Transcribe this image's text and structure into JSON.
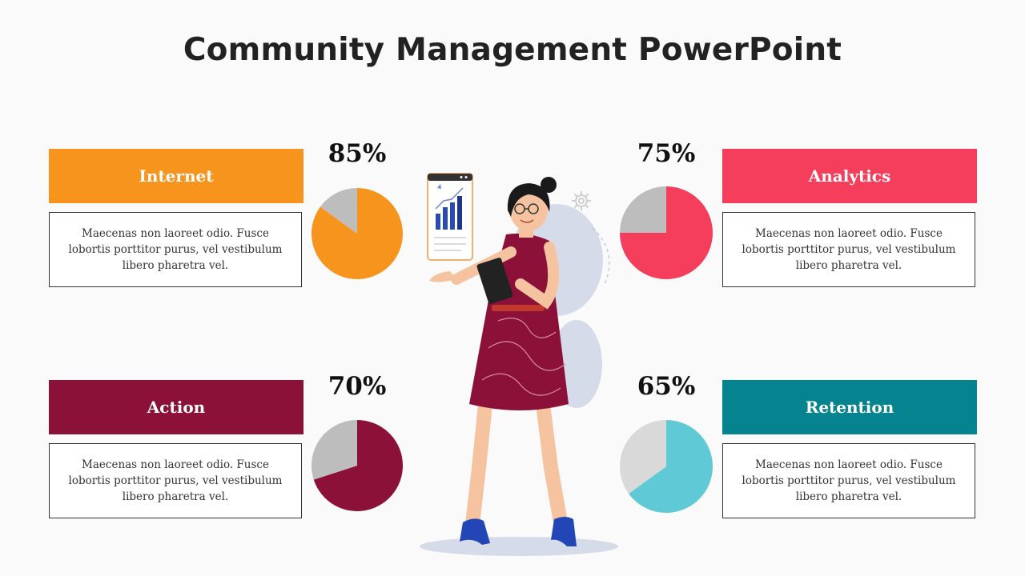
{
  "title": "Community Management PowerPoint",
  "body_text": "Maecenas non laoreet odio. Fusce lobortis porttitor purus, vel vestibulum libero pharetra vel.",
  "chart_data": [
    {
      "type": "pie",
      "label": "Internet",
      "title": "85%",
      "values": [
        85,
        15
      ],
      "colors": [
        "#f7941d",
        "#bdbdbd"
      ]
    },
    {
      "type": "pie",
      "label": "Analytics",
      "title": "75%",
      "values": [
        75,
        25
      ],
      "colors": [
        "#f53d5c",
        "#bdbdbd"
      ]
    },
    {
      "type": "pie",
      "label": "Action",
      "title": "70%",
      "values": [
        70,
        30
      ],
      "colors": [
        "#8b1139",
        "#bdbdbd"
      ]
    },
    {
      "type": "pie",
      "label": "Retention",
      "title": "65%",
      "values": [
        65,
        35
      ],
      "colors": [
        "#5fcad6",
        "#d9d9d9"
      ]
    }
  ],
  "cards": [
    {
      "label": "Internet",
      "percent": "85%",
      "color": "#f7941d"
    },
    {
      "label": "Analytics",
      "percent": "75%",
      "color": "#f53d5c"
    },
    {
      "label": "Action",
      "percent": "70%",
      "color": "#8b1139"
    },
    {
      "label": "Retention",
      "percent": "65%",
      "color": "#05848f"
    }
  ]
}
